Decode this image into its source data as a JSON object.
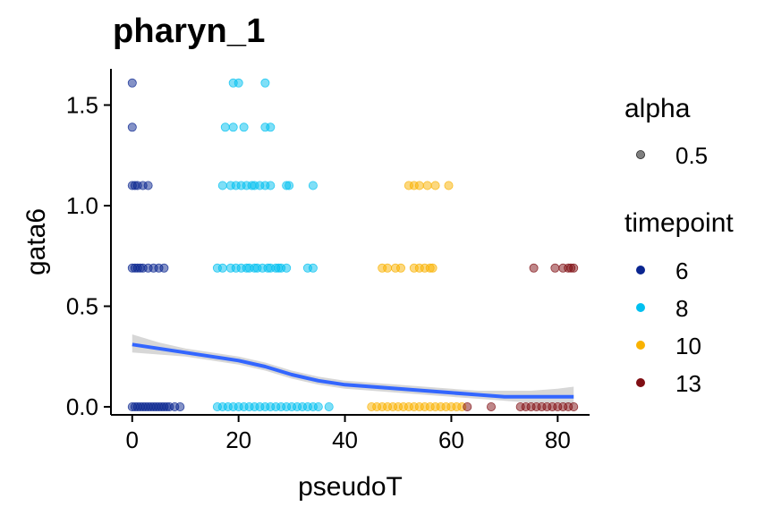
{
  "chart_data": {
    "type": "scatter",
    "title": "pharyn_1",
    "xlabel": "pseudoT",
    "ylabel": "gata6",
    "xlim": [
      -4,
      86
    ],
    "ylim": [
      -0.04,
      1.68
    ],
    "xticks": [
      0,
      20,
      40,
      60,
      80
    ],
    "yticks": [
      0.0,
      0.5,
      1.0,
      1.5
    ],
    "x_tick_labels": [
      "0",
      "20",
      "40",
      "60",
      "80"
    ],
    "y_tick_labels": [
      "0.0",
      "0.5",
      "1.0",
      "1.5"
    ],
    "grid": false,
    "legend_position": "right",
    "point_alpha": 0.5,
    "legend": {
      "alpha": {
        "title": "alpha",
        "entries": [
          "0.5"
        ]
      },
      "timepoint": {
        "title": "timepoint",
        "entries": [
          "6",
          "8",
          "10",
          "13"
        ]
      }
    },
    "series": [
      {
        "name": "6",
        "color": "#0a2590",
        "points": [
          [
            0,
            1.61
          ],
          [
            0,
            1.39
          ],
          [
            0,
            1.1
          ],
          [
            0.5,
            1.1
          ],
          [
            1,
            1.1
          ],
          [
            2,
            1.1
          ],
          [
            3,
            1.1
          ],
          [
            0,
            0.69
          ],
          [
            0.5,
            0.69
          ],
          [
            1,
            0.69
          ],
          [
            1.5,
            0.69
          ],
          [
            2,
            0.69
          ],
          [
            3,
            0.69
          ],
          [
            4,
            0.69
          ],
          [
            5,
            0.69
          ],
          [
            6,
            0.69
          ],
          [
            0,
            0.0
          ],
          [
            0.5,
            0.0
          ],
          [
            1,
            0.0
          ],
          [
            1.5,
            0.0
          ],
          [
            2,
            0.0
          ],
          [
            2.5,
            0.0
          ],
          [
            3,
            0.0
          ],
          [
            3.5,
            0.0
          ],
          [
            4,
            0.0
          ],
          [
            4.5,
            0.0
          ],
          [
            5,
            0.0
          ],
          [
            5.5,
            0.0
          ],
          [
            6,
            0.0
          ],
          [
            6.5,
            0.0
          ],
          [
            7,
            0.0
          ],
          [
            8,
            0.0
          ],
          [
            9,
            0.0
          ]
        ]
      },
      {
        "name": "8",
        "color": "#00c0f0",
        "points": [
          [
            19,
            1.61
          ],
          [
            20,
            1.61
          ],
          [
            25,
            1.61
          ],
          [
            17.5,
            1.39
          ],
          [
            19,
            1.39
          ],
          [
            21,
            1.39
          ],
          [
            25,
            1.39
          ],
          [
            26,
            1.39
          ],
          [
            17,
            1.1
          ],
          [
            18.5,
            1.1
          ],
          [
            19.5,
            1.1
          ],
          [
            20.5,
            1.1
          ],
          [
            21.5,
            1.1
          ],
          [
            22.5,
            1.1
          ],
          [
            23,
            1.1
          ],
          [
            24,
            1.1
          ],
          [
            25,
            1.1
          ],
          [
            26,
            1.1
          ],
          [
            29,
            1.1
          ],
          [
            29.5,
            1.1
          ],
          [
            34,
            1.1
          ],
          [
            16,
            0.69
          ],
          [
            17,
            0.69
          ],
          [
            18.5,
            0.69
          ],
          [
            19.5,
            0.69
          ],
          [
            20.5,
            0.69
          ],
          [
            21.5,
            0.69
          ],
          [
            22,
            0.69
          ],
          [
            23,
            0.69
          ],
          [
            23.5,
            0.69
          ],
          [
            24.5,
            0.69
          ],
          [
            25.5,
            0.69
          ],
          [
            26,
            0.69
          ],
          [
            27,
            0.69
          ],
          [
            27.5,
            0.69
          ],
          [
            28,
            0.69
          ],
          [
            29,
            0.69
          ],
          [
            33,
            0.69
          ],
          [
            34,
            0.69
          ],
          [
            16,
            0.0
          ],
          [
            17,
            0.0
          ],
          [
            18,
            0.0
          ],
          [
            19,
            0.0
          ],
          [
            20,
            0.0
          ],
          [
            21,
            0.0
          ],
          [
            22,
            0.0
          ],
          [
            23,
            0.0
          ],
          [
            24,
            0.0
          ],
          [
            25,
            0.0
          ],
          [
            26,
            0.0
          ],
          [
            27,
            0.0
          ],
          [
            28,
            0.0
          ],
          [
            29,
            0.0
          ],
          [
            30,
            0.0
          ],
          [
            31,
            0.0
          ],
          [
            32,
            0.0
          ],
          [
            33,
            0.0
          ],
          [
            34,
            0.0
          ],
          [
            35,
            0.0
          ],
          [
            37,
            0.0
          ]
        ]
      },
      {
        "name": "10",
        "color": "#f9b200",
        "points": [
          [
            52,
            1.1
          ],
          [
            53,
            1.1
          ],
          [
            54,
            1.1
          ],
          [
            55.5,
            1.1
          ],
          [
            57,
            1.1
          ],
          [
            59.5,
            1.1
          ],
          [
            47,
            0.69
          ],
          [
            48,
            0.69
          ],
          [
            49.5,
            0.69
          ],
          [
            50.5,
            0.69
          ],
          [
            53,
            0.69
          ],
          [
            54,
            0.69
          ],
          [
            55,
            0.69
          ],
          [
            56,
            0.69
          ],
          [
            56.5,
            0.69
          ],
          [
            45,
            0.0
          ],
          [
            46,
            0.0
          ],
          [
            47,
            0.0
          ],
          [
            48,
            0.0
          ],
          [
            49,
            0.0
          ],
          [
            50,
            0.0
          ],
          [
            51,
            0.0
          ],
          [
            52,
            0.0
          ],
          [
            53,
            0.0
          ],
          [
            54,
            0.0
          ],
          [
            55,
            0.0
          ],
          [
            56,
            0.0
          ],
          [
            57,
            0.0
          ],
          [
            58,
            0.0
          ],
          [
            59,
            0.0
          ],
          [
            60,
            0.0
          ],
          [
            61,
            0.0
          ],
          [
            62,
            0.0
          ]
        ]
      },
      {
        "name": "13",
        "color": "#800f14",
        "points": [
          [
            75.5,
            0.69
          ],
          [
            79.5,
            0.69
          ],
          [
            81,
            0.69
          ],
          [
            82,
            0.69
          ],
          [
            82.5,
            0.69
          ],
          [
            83,
            0.69
          ],
          [
            63,
            0.0
          ],
          [
            67.5,
            0.0
          ],
          [
            73,
            0.0
          ],
          [
            74,
            0.0
          ],
          [
            75,
            0.0
          ],
          [
            76,
            0.0
          ],
          [
            77,
            0.0
          ],
          [
            78,
            0.0
          ],
          [
            79,
            0.0
          ],
          [
            80,
            0.0
          ],
          [
            81,
            0.0
          ],
          [
            82,
            0.0
          ],
          [
            83,
            0.0
          ]
        ]
      }
    ],
    "smooth": {
      "color": "#3366ff",
      "ribbon_color": "#bdbdbd",
      "x": [
        0,
        5,
        10,
        15,
        20,
        25,
        30,
        35,
        40,
        45,
        50,
        55,
        60,
        65,
        70,
        75,
        80,
        83
      ],
      "y": [
        0.31,
        0.29,
        0.27,
        0.25,
        0.23,
        0.2,
        0.16,
        0.13,
        0.11,
        0.1,
        0.09,
        0.08,
        0.07,
        0.06,
        0.05,
        0.05,
        0.05,
        0.05
      ],
      "lower": [
        0.27,
        0.26,
        0.25,
        0.23,
        0.21,
        0.18,
        0.14,
        0.11,
        0.09,
        0.08,
        0.07,
        0.06,
        0.05,
        0.04,
        0.03,
        0.02,
        0.02,
        0.01
      ],
      "upper": [
        0.36,
        0.32,
        0.29,
        0.27,
        0.25,
        0.22,
        0.18,
        0.15,
        0.13,
        0.12,
        0.11,
        0.1,
        0.09,
        0.08,
        0.08,
        0.08,
        0.09,
        0.1
      ]
    }
  }
}
